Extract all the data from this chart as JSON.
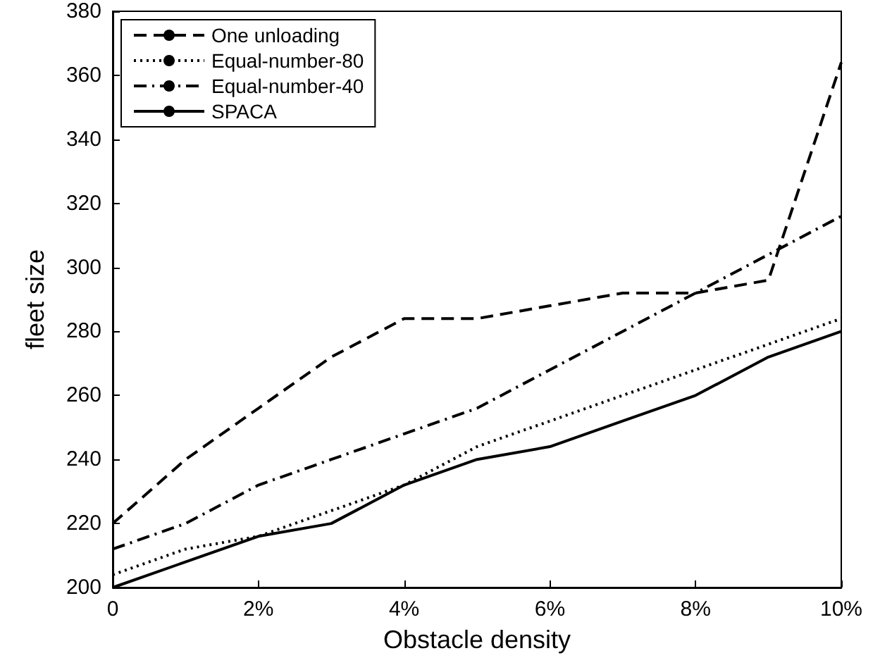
{
  "chart_data": {
    "type": "line",
    "xlabel": "Obstacle density",
    "ylabel": "fleet size",
    "x": [
      0,
      1,
      2,
      3,
      4,
      5,
      6,
      7,
      8,
      9,
      10
    ],
    "xlim": [
      0,
      10
    ],
    "xticks": [
      0,
      {
        "value": 2,
        "label": "2%"
      },
      {
        "value": 4,
        "label": "4%"
      },
      {
        "value": 6,
        "label": "6%"
      },
      {
        "value": 8,
        "label": "8%"
      },
      {
        "value": 10,
        "label": "10%"
      }
    ],
    "ylim": [
      200,
      380
    ],
    "yticks": [
      200,
      220,
      240,
      260,
      280,
      300,
      320,
      340,
      360,
      380
    ],
    "legend": "top left",
    "grid": false,
    "marker": "none",
    "series": [
      {
        "name": "One unloading",
        "color": "#000000",
        "line_style": "dashed",
        "values": [
          220,
          240,
          256,
          272,
          284,
          284,
          288,
          292,
          292,
          296,
          364
        ]
      },
      {
        "name": "Equal-number-80",
        "color": "#000000",
        "line_style": "dotted",
        "values": [
          204,
          212,
          216,
          224,
          232,
          244,
          252,
          260,
          268,
          276,
          284
        ]
      },
      {
        "name": "Equal-number-40",
        "color": "#000000",
        "line_style": "dashdot",
        "values": [
          212,
          220,
          232,
          240,
          248,
          256,
          268,
          280,
          292,
          304,
          316
        ]
      },
      {
        "name": "SPACA",
        "color": "#000000",
        "line_style": "solid",
        "values": [
          200,
          208,
          216,
          220,
          232,
          240,
          244,
          252,
          260,
          272,
          280
        ]
      }
    ]
  }
}
